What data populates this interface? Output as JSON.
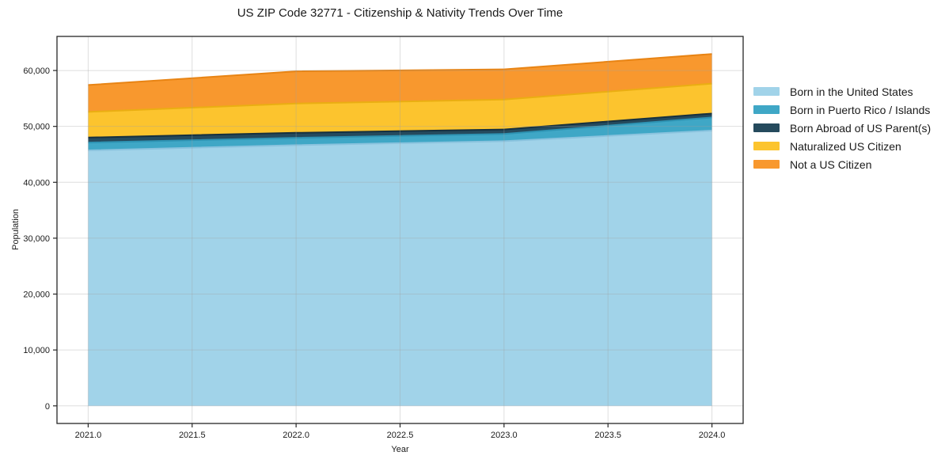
{
  "chart_data": {
    "type": "area",
    "title": "US ZIP Code 32771 - Citizenship & Nativity Trends Over Time",
    "xlabel": "Year",
    "ylabel": "Population",
    "x": [
      2021,
      2022,
      2023,
      2024
    ],
    "series": [
      {
        "name": "Born in the United States",
        "color": "#a1d3e9",
        "edge_color": "#8ac3de",
        "values": [
          45700,
          46650,
          47350,
          49250
        ]
      },
      {
        "name": "Born in Puerto Rico / Islands",
        "color": "#3fa7c6",
        "edge_color": "#2e93b3",
        "values": [
          1400,
          1300,
          1300,
          2350
        ]
      },
      {
        "name": "Born Abroad of US Parent(s)",
        "color": "#254a5d",
        "edge_color": "#16303f",
        "values": [
          900,
          900,
          800,
          700
        ]
      },
      {
        "name": "Naturalized US Citizen",
        "color": "#fcc42e",
        "edge_color": "#eaae12",
        "values": [
          4600,
          5250,
          5350,
          5350
        ]
      },
      {
        "name": "Not a US Citizen",
        "color": "#f8982e",
        "edge_color": "#e88414",
        "values": [
          4800,
          5750,
          5400,
          5300
        ]
      }
    ],
    "totals": [
      57400,
      59850,
      60200,
      62950
    ],
    "xticks": [
      "2021.0",
      "2021.5",
      "2022.0",
      "2022.5",
      "2023.0",
      "2023.5",
      "2024.0"
    ],
    "xtick_values": [
      2021.0,
      2021.5,
      2022.0,
      2022.5,
      2023.0,
      2023.5,
      2024.0
    ],
    "yticks": [
      "0",
      "10,000",
      "20,000",
      "30,000",
      "40,000",
      "50,000",
      "60,000"
    ],
    "ytick_values": [
      0,
      10000,
      20000,
      30000,
      40000,
      50000,
      60000
    ],
    "xlim": [
      2020.85,
      2024.15
    ],
    "ylim": [
      -3148,
      66098
    ],
    "grid": true,
    "legend_position": "right",
    "frame_color": "#262626",
    "grid_color": "rgba(160,160,160,0.35)",
    "text_color": "#1a1a1a"
  }
}
